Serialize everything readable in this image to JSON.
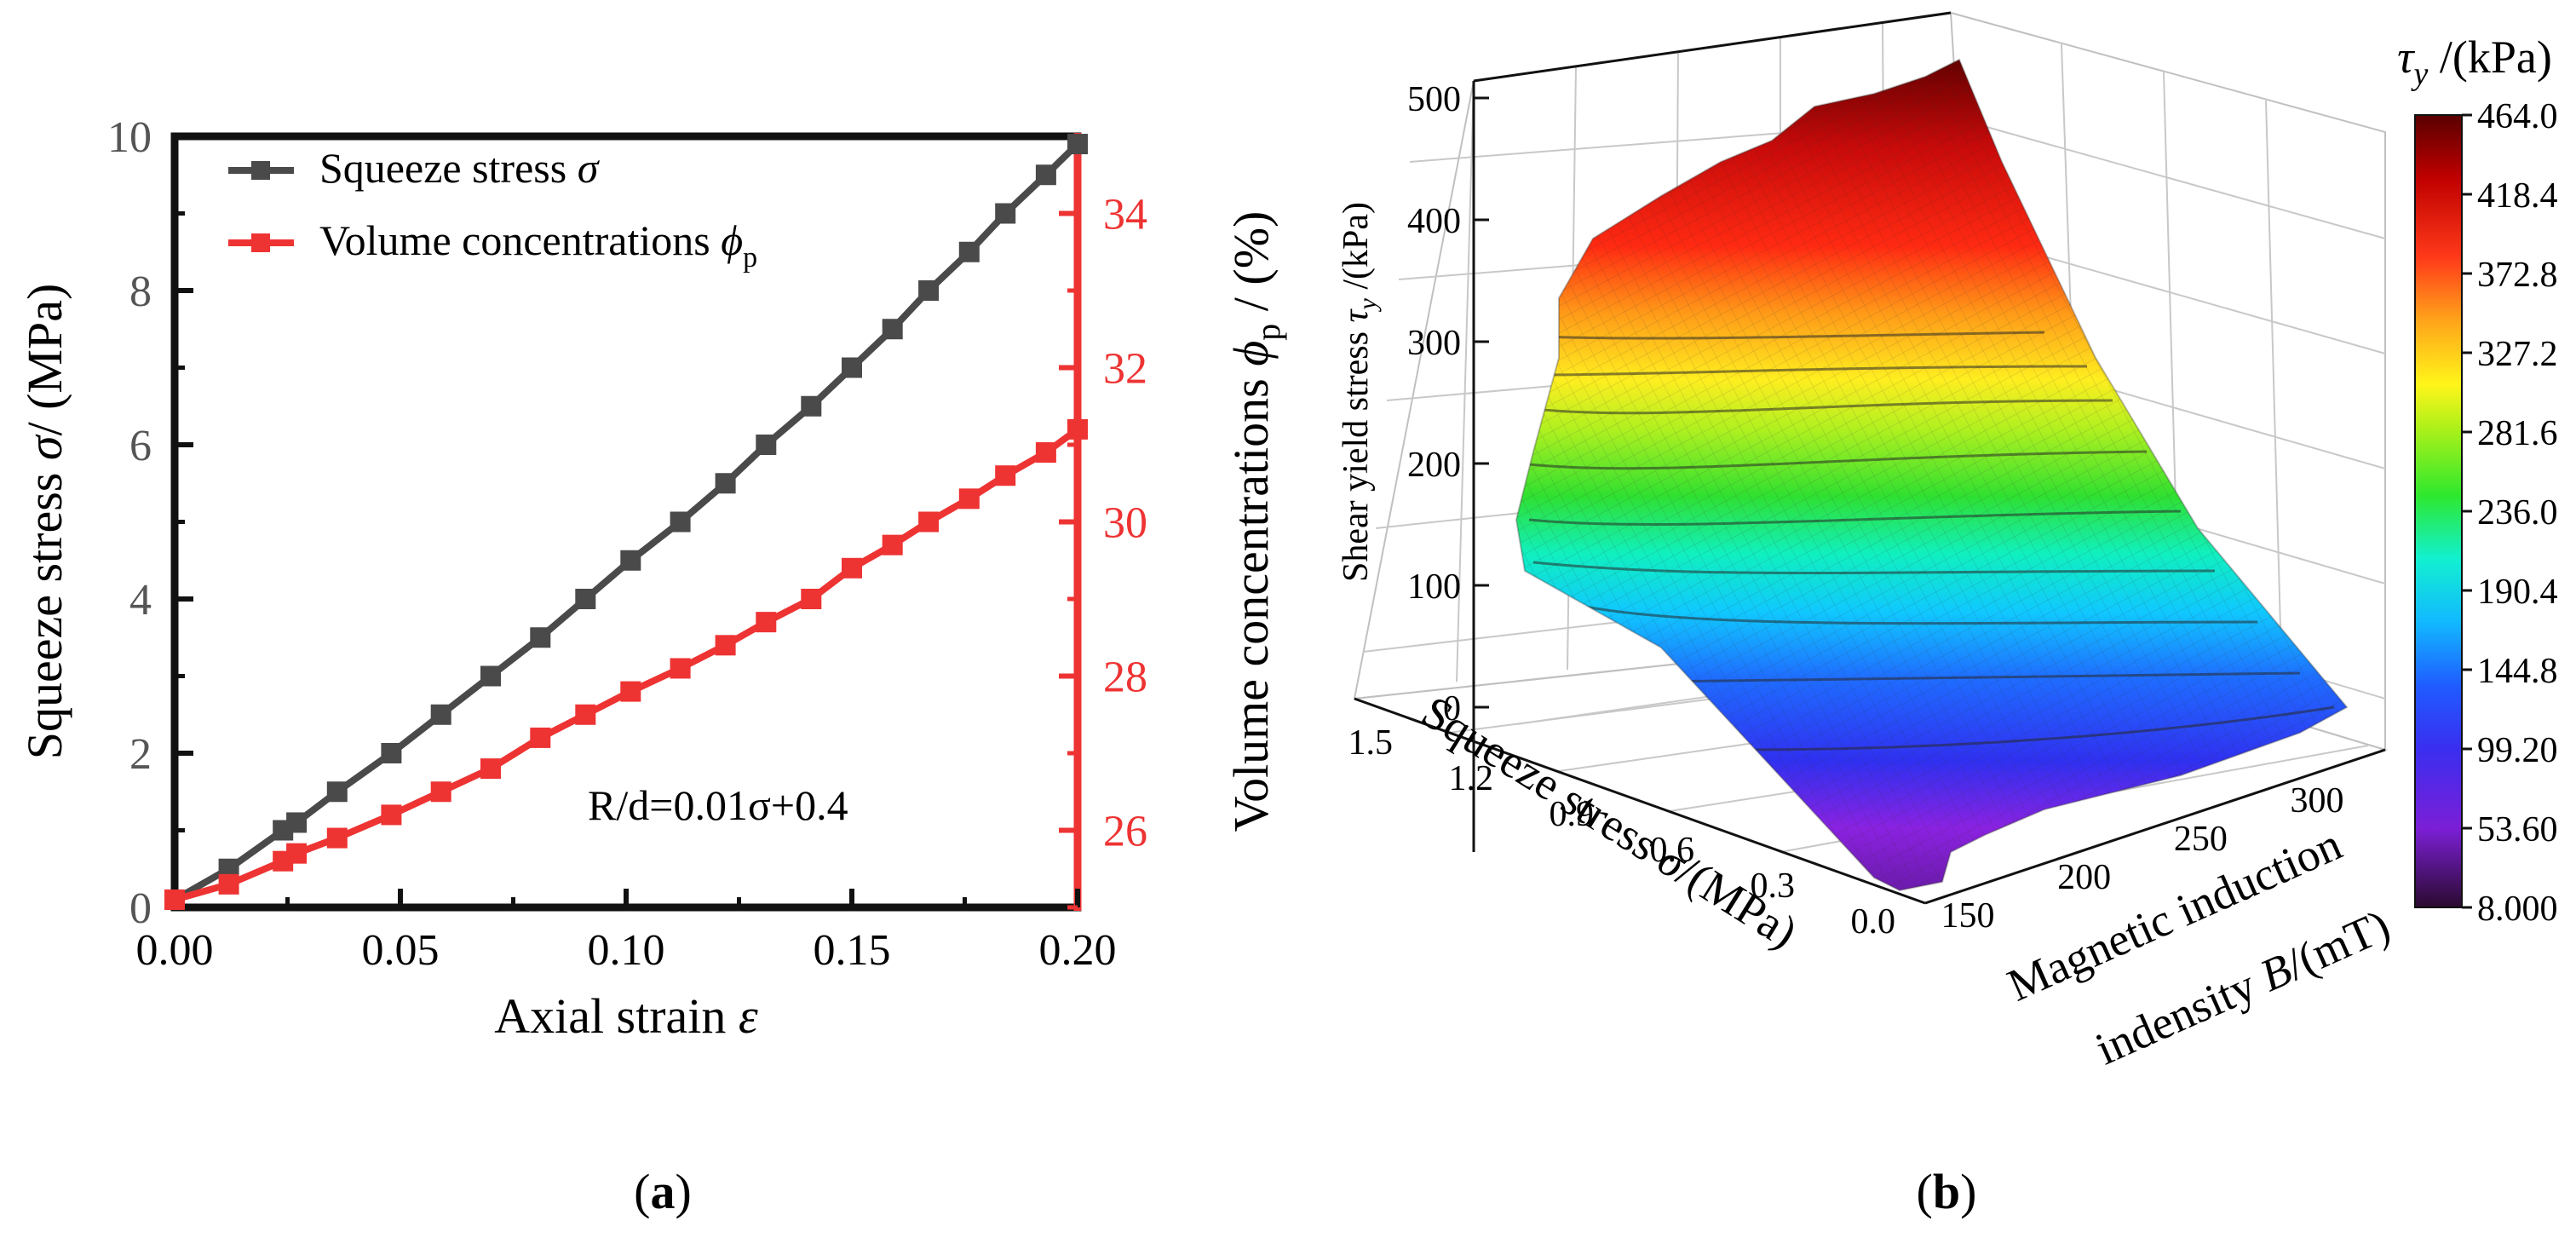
{
  "panels": {
    "a_label_open": "(",
    "a_label_letter": "a",
    "a_label_close": ")",
    "b_label_open": "(",
    "b_label_letter": "b",
    "b_label_close": ")"
  },
  "colors": {
    "squeeze_series": "#4a4a4a",
    "volume_series": "#ee3333",
    "right_axis": "#ee3333",
    "axis": "#111111"
  },
  "chart_data": [
    {
      "type": "line",
      "xlabel_text": "Axial strain ",
      "xlabel_sym": "ε",
      "ylabel_left_text": "Squeeze stress ",
      "ylabel_left_sym": "σ",
      "ylabel_left_unit": "/ (MPa)",
      "ylabel_right_text": "Volume concentrations ",
      "ylabel_right_sym": "ϕ",
      "ylabel_right_sub": "p",
      "ylabel_right_unit": " / (%)",
      "xlim": [
        0,
        0.2
      ],
      "ylim_left": [
        0,
        10
      ],
      "ylim_right": [
        25,
        35
      ],
      "x_ticks": [
        "0.00",
        "0.05",
        "0.10",
        "0.15",
        "0.20"
      ],
      "x_tick_values": [
        0,
        0.05,
        0.1,
        0.15,
        0.2
      ],
      "y_left_ticks": [
        "0",
        "2",
        "4",
        "6",
        "8",
        "10"
      ],
      "y_left_tick_values": [
        0,
        2,
        4,
        6,
        8,
        10
      ],
      "y_right_ticks": [
        "26",
        "28",
        "30",
        "32",
        "34"
      ],
      "y_right_tick_values": [
        26,
        28,
        30,
        32,
        34
      ],
      "annotation": "R/d=0.01σ+0.4",
      "legend_position": "top-left",
      "series": [
        {
          "name": "Squeeze stress ",
          "name_sym": "σ",
          "axis": "left",
          "x": [
            0.0,
            0.012,
            0.024,
            0.027,
            0.036,
            0.048,
            0.059,
            0.07,
            0.081,
            0.091,
            0.101,
            0.112,
            0.122,
            0.131,
            0.141,
            0.15,
            0.159,
            0.167,
            0.176,
            0.184,
            0.193,
            0.2
          ],
          "y": [
            0.1,
            0.5,
            1.0,
            1.1,
            1.5,
            2.0,
            2.5,
            3.0,
            3.5,
            4.0,
            4.5,
            5.0,
            5.5,
            6.0,
            6.5,
            7.0,
            7.5,
            8.0,
            8.5,
            9.0,
            9.5,
            9.9
          ]
        },
        {
          "name": "Volume concentrations ",
          "name_sym": "ϕ",
          "name_sub": "p",
          "axis": "right",
          "x": [
            0.0,
            0.012,
            0.024,
            0.027,
            0.036,
            0.048,
            0.059,
            0.07,
            0.081,
            0.091,
            0.101,
            0.112,
            0.122,
            0.131,
            0.141,
            0.15,
            0.159,
            0.167,
            0.176,
            0.184,
            0.193,
            0.2
          ],
          "y": [
            25.1,
            25.3,
            25.6,
            25.7,
            25.9,
            26.2,
            26.5,
            26.8,
            27.2,
            27.5,
            27.8,
            28.1,
            28.4,
            28.7,
            29.0,
            29.4,
            29.7,
            30.0,
            30.3,
            30.6,
            30.9,
            31.2
          ]
        }
      ]
    },
    {
      "type": "surface",
      "zlabel_text": "Shear yield stress ",
      "zlabel_sym": "τ",
      "zlabel_sub": "y",
      "zlabel_unit": " /(kPa)",
      "xlabel_text": "Squeeze stress ",
      "xlabel_sym": "σ",
      "xlabel_unit": "/(MPa)",
      "ylabel_line1": "Magnetic induction",
      "ylabel_line2_text": "indensity ",
      "ylabel_line2_sym": "B",
      "ylabel_line2_unit": "/(mT)",
      "z_ticks": [
        "0",
        "100",
        "200",
        "300",
        "400",
        "500"
      ],
      "z_tick_values": [
        0,
        100,
        200,
        300,
        400,
        500
      ],
      "x_ticks": [
        "1.5",
        "1.2",
        "0.9",
        "0.6",
        "0.3",
        "0.0"
      ],
      "x_tick_values": [
        1.5,
        1.2,
        0.9,
        0.6,
        0.3,
        0.0
      ],
      "y_ticks": [
        "150",
        "200",
        "250",
        "300"
      ],
      "y_tick_values": [
        150,
        200,
        250,
        300
      ],
      "zlim": [
        0,
        500
      ],
      "xlim": [
        0,
        1.5
      ],
      "ylim": [
        130,
        320
      ],
      "colorbar": {
        "title_sym": "τ",
        "title_sub": "y",
        "title_unit": " /(kPa)",
        "ticks": [
          "464.0",
          "418.4",
          "372.8",
          "327.2",
          "281.6",
          "236.0",
          "190.4",
          "144.8",
          "99.20",
          "53.60",
          "8.000"
        ],
        "tick_values": [
          464.0,
          418.4,
          372.8,
          327.2,
          281.6,
          236.0,
          190.4,
          144.8,
          99.2,
          53.6,
          8.0
        ],
        "min": 8.0,
        "max": 464.0
      },
      "surface_corners": {
        "sigma_1.5_B_130": 140,
        "sigma_0.0_B_130": 40,
        "sigma_1.5_B_320": 500,
        "sigma_0.0_B_320": 70
      }
    }
  ]
}
